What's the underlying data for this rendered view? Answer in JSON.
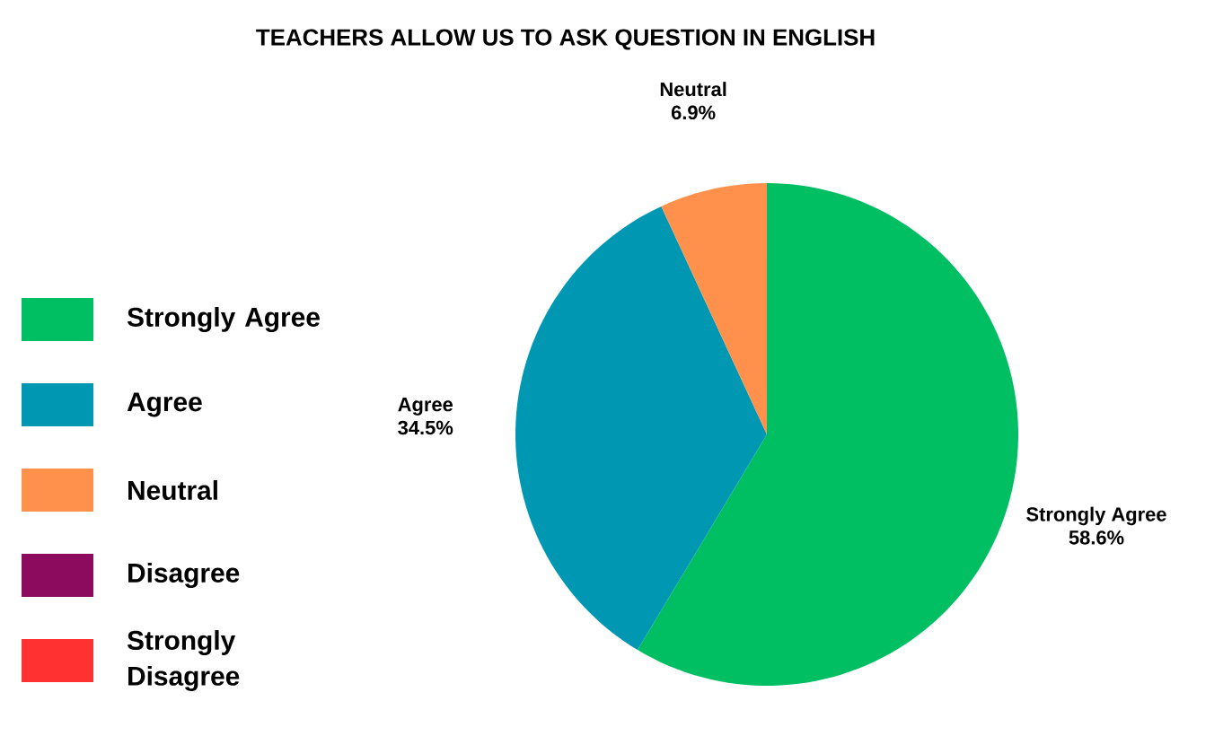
{
  "chart_data": {
    "type": "pie",
    "title": "TEACHERS ALLOW US TO ASK QUESTION IN ENGLISH",
    "categories": [
      "Strongly Agree",
      "Agree",
      "Neutral",
      "Disagree",
      "Strongly Disagree"
    ],
    "values": [
      58.6,
      34.5,
      6.9,
      0,
      0
    ],
    "colors": [
      "#00bf63",
      "#0097b2",
      "#ff914d",
      "#8c0b5f",
      "#ff3131"
    ],
    "value_labels": [
      "58.6%",
      "34.5%",
      "6.9%",
      null,
      null
    ],
    "legend": "left"
  }
}
